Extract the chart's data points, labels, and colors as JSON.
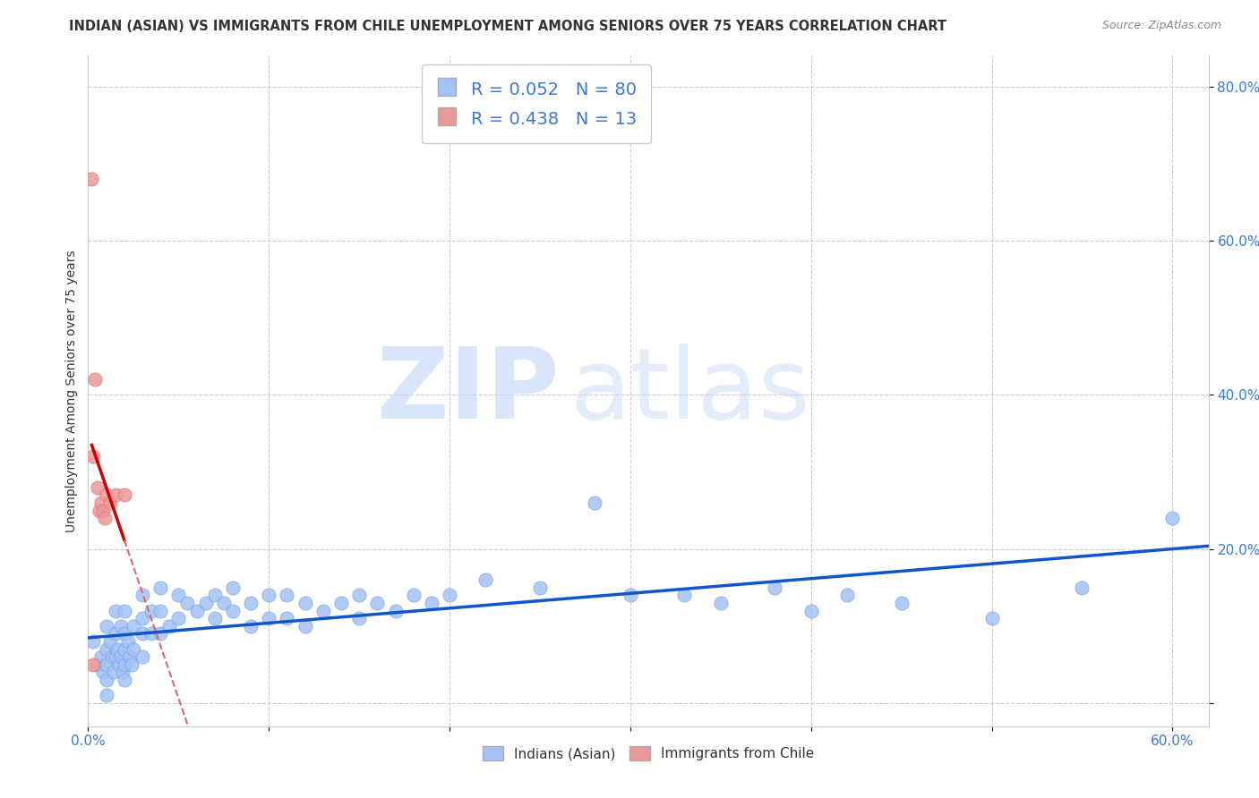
{
  "title": "INDIAN (ASIAN) VS IMMIGRANTS FROM CHILE UNEMPLOYMENT AMONG SENIORS OVER 75 YEARS CORRELATION CHART",
  "source": "Source: ZipAtlas.com",
  "ylabel": "Unemployment Among Seniors over 75 years",
  "xlim": [
    0.0,
    0.62
  ],
  "ylim": [
    -0.03,
    0.84
  ],
  "xticks": [
    0.0,
    0.1,
    0.2,
    0.3,
    0.4,
    0.5,
    0.6
  ],
  "xtick_labels": [
    "0.0%",
    "",
    "",
    "",
    "",
    "",
    "60.0%"
  ],
  "yticks": [
    0.0,
    0.2,
    0.4,
    0.6,
    0.8
  ],
  "ytick_labels": [
    "",
    "20.0%",
    "40.0%",
    "60.0%",
    "80.0%"
  ],
  "blue_color": "#a4c2f4",
  "blue_edge_color": "#6d9eeb",
  "pink_color": "#ea9999",
  "pink_edge_color": "#e06666",
  "blue_line_color": "#1155cc",
  "pink_line_color": "#cc0000",
  "pink_dash_color": "#e06666",
  "R_blue": 0.052,
  "N_blue": 80,
  "R_pink": 0.438,
  "N_pink": 13,
  "watermark_zip": "ZIP",
  "watermark_atlas": "atlas",
  "background_color": "#ffffff",
  "grid_color": "#cccccc",
  "blue_scatter_x": [
    0.003,
    0.005,
    0.007,
    0.008,
    0.01,
    0.01,
    0.01,
    0.01,
    0.01,
    0.012,
    0.013,
    0.014,
    0.015,
    0.015,
    0.015,
    0.016,
    0.017,
    0.018,
    0.018,
    0.019,
    0.02,
    0.02,
    0.02,
    0.02,
    0.02,
    0.022,
    0.023,
    0.024,
    0.025,
    0.025,
    0.03,
    0.03,
    0.03,
    0.03,
    0.035,
    0.035,
    0.04,
    0.04,
    0.04,
    0.045,
    0.05,
    0.05,
    0.055,
    0.06,
    0.065,
    0.07,
    0.07,
    0.075,
    0.08,
    0.08,
    0.09,
    0.09,
    0.1,
    0.1,
    0.11,
    0.11,
    0.12,
    0.12,
    0.13,
    0.14,
    0.15,
    0.15,
    0.16,
    0.17,
    0.18,
    0.19,
    0.2,
    0.22,
    0.25,
    0.28,
    0.3,
    0.33,
    0.35,
    0.38,
    0.4,
    0.42,
    0.45,
    0.5,
    0.55,
    0.6
  ],
  "blue_scatter_y": [
    0.08,
    0.05,
    0.06,
    0.04,
    0.1,
    0.07,
    0.05,
    0.03,
    0.01,
    0.08,
    0.06,
    0.04,
    0.12,
    0.09,
    0.06,
    0.07,
    0.05,
    0.1,
    0.06,
    0.04,
    0.12,
    0.09,
    0.07,
    0.05,
    0.03,
    0.08,
    0.06,
    0.05,
    0.1,
    0.07,
    0.14,
    0.11,
    0.09,
    0.06,
    0.12,
    0.09,
    0.15,
    0.12,
    0.09,
    0.1,
    0.14,
    0.11,
    0.13,
    0.12,
    0.13,
    0.14,
    0.11,
    0.13,
    0.15,
    0.12,
    0.13,
    0.1,
    0.14,
    0.11,
    0.14,
    0.11,
    0.13,
    0.1,
    0.12,
    0.13,
    0.14,
    0.11,
    0.13,
    0.12,
    0.14,
    0.13,
    0.14,
    0.16,
    0.15,
    0.26,
    0.14,
    0.14,
    0.13,
    0.15,
    0.12,
    0.14,
    0.13,
    0.11,
    0.15,
    0.24
  ],
  "pink_scatter_x": [
    0.002,
    0.003,
    0.004,
    0.005,
    0.006,
    0.007,
    0.008,
    0.009,
    0.01,
    0.012,
    0.015,
    0.02,
    0.003
  ],
  "pink_scatter_y": [
    0.68,
    0.32,
    0.42,
    0.28,
    0.25,
    0.26,
    0.25,
    0.24,
    0.27,
    0.26,
    0.27,
    0.27,
    0.05
  ]
}
